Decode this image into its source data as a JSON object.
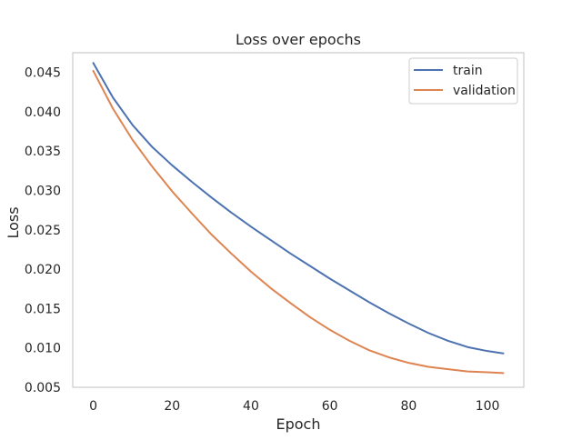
{
  "chart_data": {
    "type": "line",
    "title": "Loss over epochs",
    "xlabel": "Epoch",
    "ylabel": "Loss",
    "xlim": [
      -5.2,
      109.2
    ],
    "ylim": [
      0.005,
      0.0475
    ],
    "xticks": [
      0,
      20,
      40,
      60,
      80,
      100
    ],
    "xtick_labels": [
      "0",
      "20",
      "40",
      "60",
      "80",
      "100"
    ],
    "yticks": [
      0.005,
      0.01,
      0.015,
      0.02,
      0.025,
      0.03,
      0.035,
      0.04,
      0.045
    ],
    "ytick_labels": [
      "0.005",
      "0.010",
      "0.015",
      "0.020",
      "0.025",
      "0.030",
      "0.035",
      "0.040",
      "0.045"
    ],
    "grid": false,
    "legend": "top-right",
    "x": [
      0,
      5,
      10,
      15,
      20,
      25,
      30,
      35,
      40,
      45,
      50,
      55,
      60,
      65,
      70,
      75,
      80,
      85,
      90,
      95,
      100,
      104
    ],
    "series": [
      {
        "name": "train",
        "color": "#4c72b0",
        "values": [
          0.0462,
          0.0418,
          0.0383,
          0.0355,
          0.0332,
          0.0311,
          0.0291,
          0.0272,
          0.0254,
          0.0237,
          0.022,
          0.0204,
          0.0188,
          0.0173,
          0.0158,
          0.0144,
          0.0131,
          0.0119,
          0.0109,
          0.0101,
          0.0096,
          0.0093
        ]
      },
      {
        "name": "validation",
        "color": "#dd8452",
        "values": [
          0.0452,
          0.0404,
          0.0364,
          0.033,
          0.0299,
          0.0271,
          0.0244,
          0.022,
          0.0197,
          0.0176,
          0.0157,
          0.0139,
          0.0123,
          0.0109,
          0.0097,
          0.0088,
          0.0081,
          0.0076,
          0.0073,
          0.007,
          0.0069,
          0.0068
        ]
      }
    ]
  }
}
